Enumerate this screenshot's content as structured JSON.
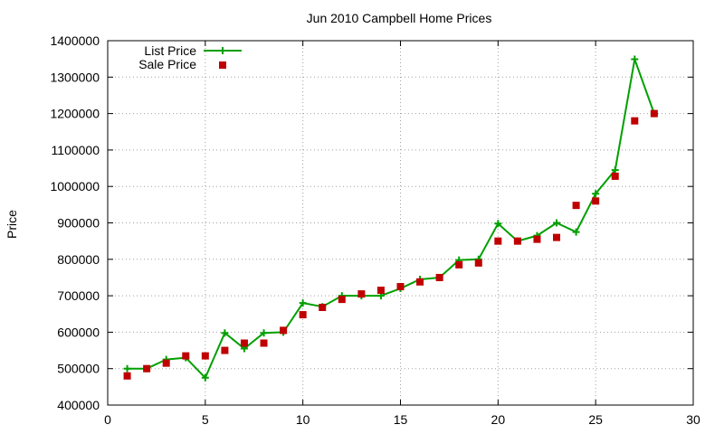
{
  "chart_data": {
    "type": "line",
    "title": "Jun 2010 Campbell Home Prices",
    "xlabel": "",
    "ylabel": "Price",
    "xlim": [
      0,
      30
    ],
    "ylim": [
      400000,
      1400000
    ],
    "xticks": [
      0,
      5,
      10,
      15,
      20,
      25,
      30
    ],
    "yticks": [
      400000,
      500000,
      600000,
      700000,
      800000,
      900000,
      1000000,
      1100000,
      1200000,
      1300000,
      1400000
    ],
    "grid": true,
    "legend_position": "top-left",
    "series": [
      {
        "name": "List Price",
        "style": "line-with-plus-markers",
        "color": "#00a000",
        "x": [
          1,
          2,
          3,
          4,
          5,
          6,
          7,
          8,
          9,
          10,
          11,
          12,
          13,
          14,
          15,
          16,
          17,
          18,
          19,
          20,
          21,
          22,
          23,
          24,
          25,
          26,
          27,
          28
        ],
        "y": [
          500000,
          500000,
          525000,
          530000,
          475000,
          598000,
          555000,
          598000,
          600000,
          680000,
          670000,
          700000,
          700000,
          700000,
          720000,
          745000,
          750000,
          798000,
          800000,
          898000,
          850000,
          865000,
          900000,
          875000,
          980000,
          1045000,
          1349000,
          1200000
        ]
      },
      {
        "name": "Sale Price",
        "style": "square-points",
        "color": "#c00000",
        "x": [
          1,
          2,
          3,
          4,
          5,
          6,
          7,
          8,
          9,
          10,
          11,
          12,
          13,
          14,
          15,
          16,
          17,
          18,
          19,
          20,
          21,
          22,
          23,
          24,
          25,
          26,
          27,
          28
        ],
        "y": [
          480000,
          500000,
          515000,
          535000,
          535000,
          550000,
          570000,
          570000,
          605000,
          648000,
          668000,
          690000,
          705000,
          715000,
          725000,
          738000,
          750000,
          785000,
          790000,
          850000,
          850000,
          855000,
          860000,
          948000,
          960000,
          1028000,
          1180000,
          1200000
        ]
      }
    ]
  }
}
